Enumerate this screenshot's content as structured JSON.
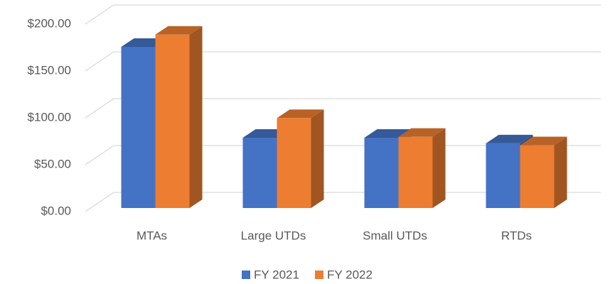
{
  "chart_data": {
    "type": "bar3d",
    "categories": [
      "MTAs",
      "Large UTDs",
      "Small UTDs",
      "RTDs"
    ],
    "series": [
      {
        "name": "FY 2021",
        "color": "#4472c4",
        "values": [
          172,
          75,
          75,
          69
        ]
      },
      {
        "name": "FY 2022",
        "color": "#ed7d31",
        "values": [
          185,
          96,
          76,
          67
        ]
      }
    ],
    "ylim": [
      0,
      200
    ],
    "yticks": [
      {
        "value": 0,
        "label": "$0.00"
      },
      {
        "value": 50,
        "label": "$50.00"
      },
      {
        "value": 100,
        "label": "$100.00"
      },
      {
        "value": 150,
        "label": "$150.00"
      },
      {
        "value": 200,
        "label": "$200.00"
      }
    ],
    "grid": true,
    "legend": "bottom"
  }
}
